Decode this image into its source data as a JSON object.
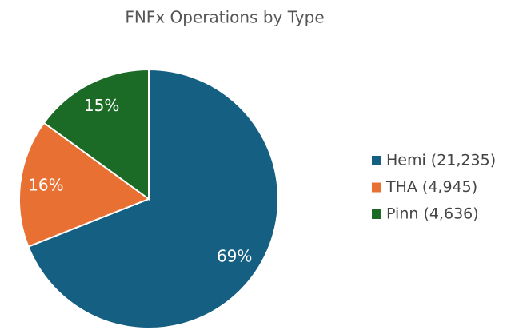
{
  "chart_data": {
    "type": "pie",
    "title": "FNFx Operations by Type",
    "series": [
      {
        "name": "Hemi (21,235)",
        "color": "#155f83",
        "values": [
          69
        ],
        "value_labels": [
          "69%"
        ]
      },
      {
        "name": "THA (4,945)",
        "color": "#e87033",
        "values": [
          16
        ],
        "value_labels": [
          "16%"
        ]
      },
      {
        "name": "Pinn (4,636)",
        "color": "#1b6b26",
        "values": [
          15
        ],
        "value_labels": [
          "15%"
        ]
      }
    ],
    "legend": "right"
  }
}
